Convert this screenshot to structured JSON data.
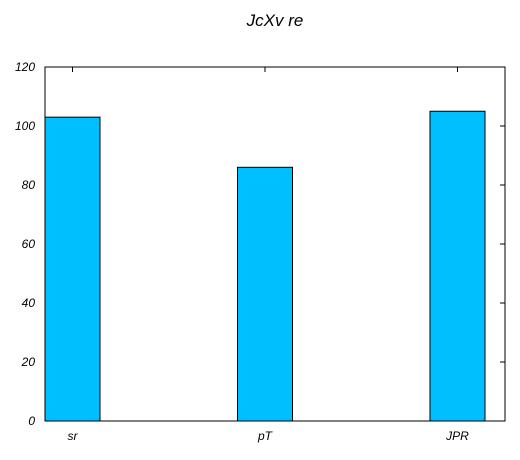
{
  "chart_data": {
    "type": "bar",
    "title": "JcXv re",
    "xlabel": "",
    "ylabel": "",
    "categories": [
      "sr",
      "pT",
      "JPR"
    ],
    "values": [
      103,
      86,
      105
    ],
    "ylim": [
      0,
      120
    ],
    "yticks": [
      0,
      20,
      40,
      60,
      80,
      100,
      120
    ],
    "grid": false,
    "legend": "none"
  },
  "colors": {
    "bar_fill": "#00bfff",
    "bar_stroke": "#000000",
    "axis": "#000000",
    "background": "#ffffff"
  }
}
